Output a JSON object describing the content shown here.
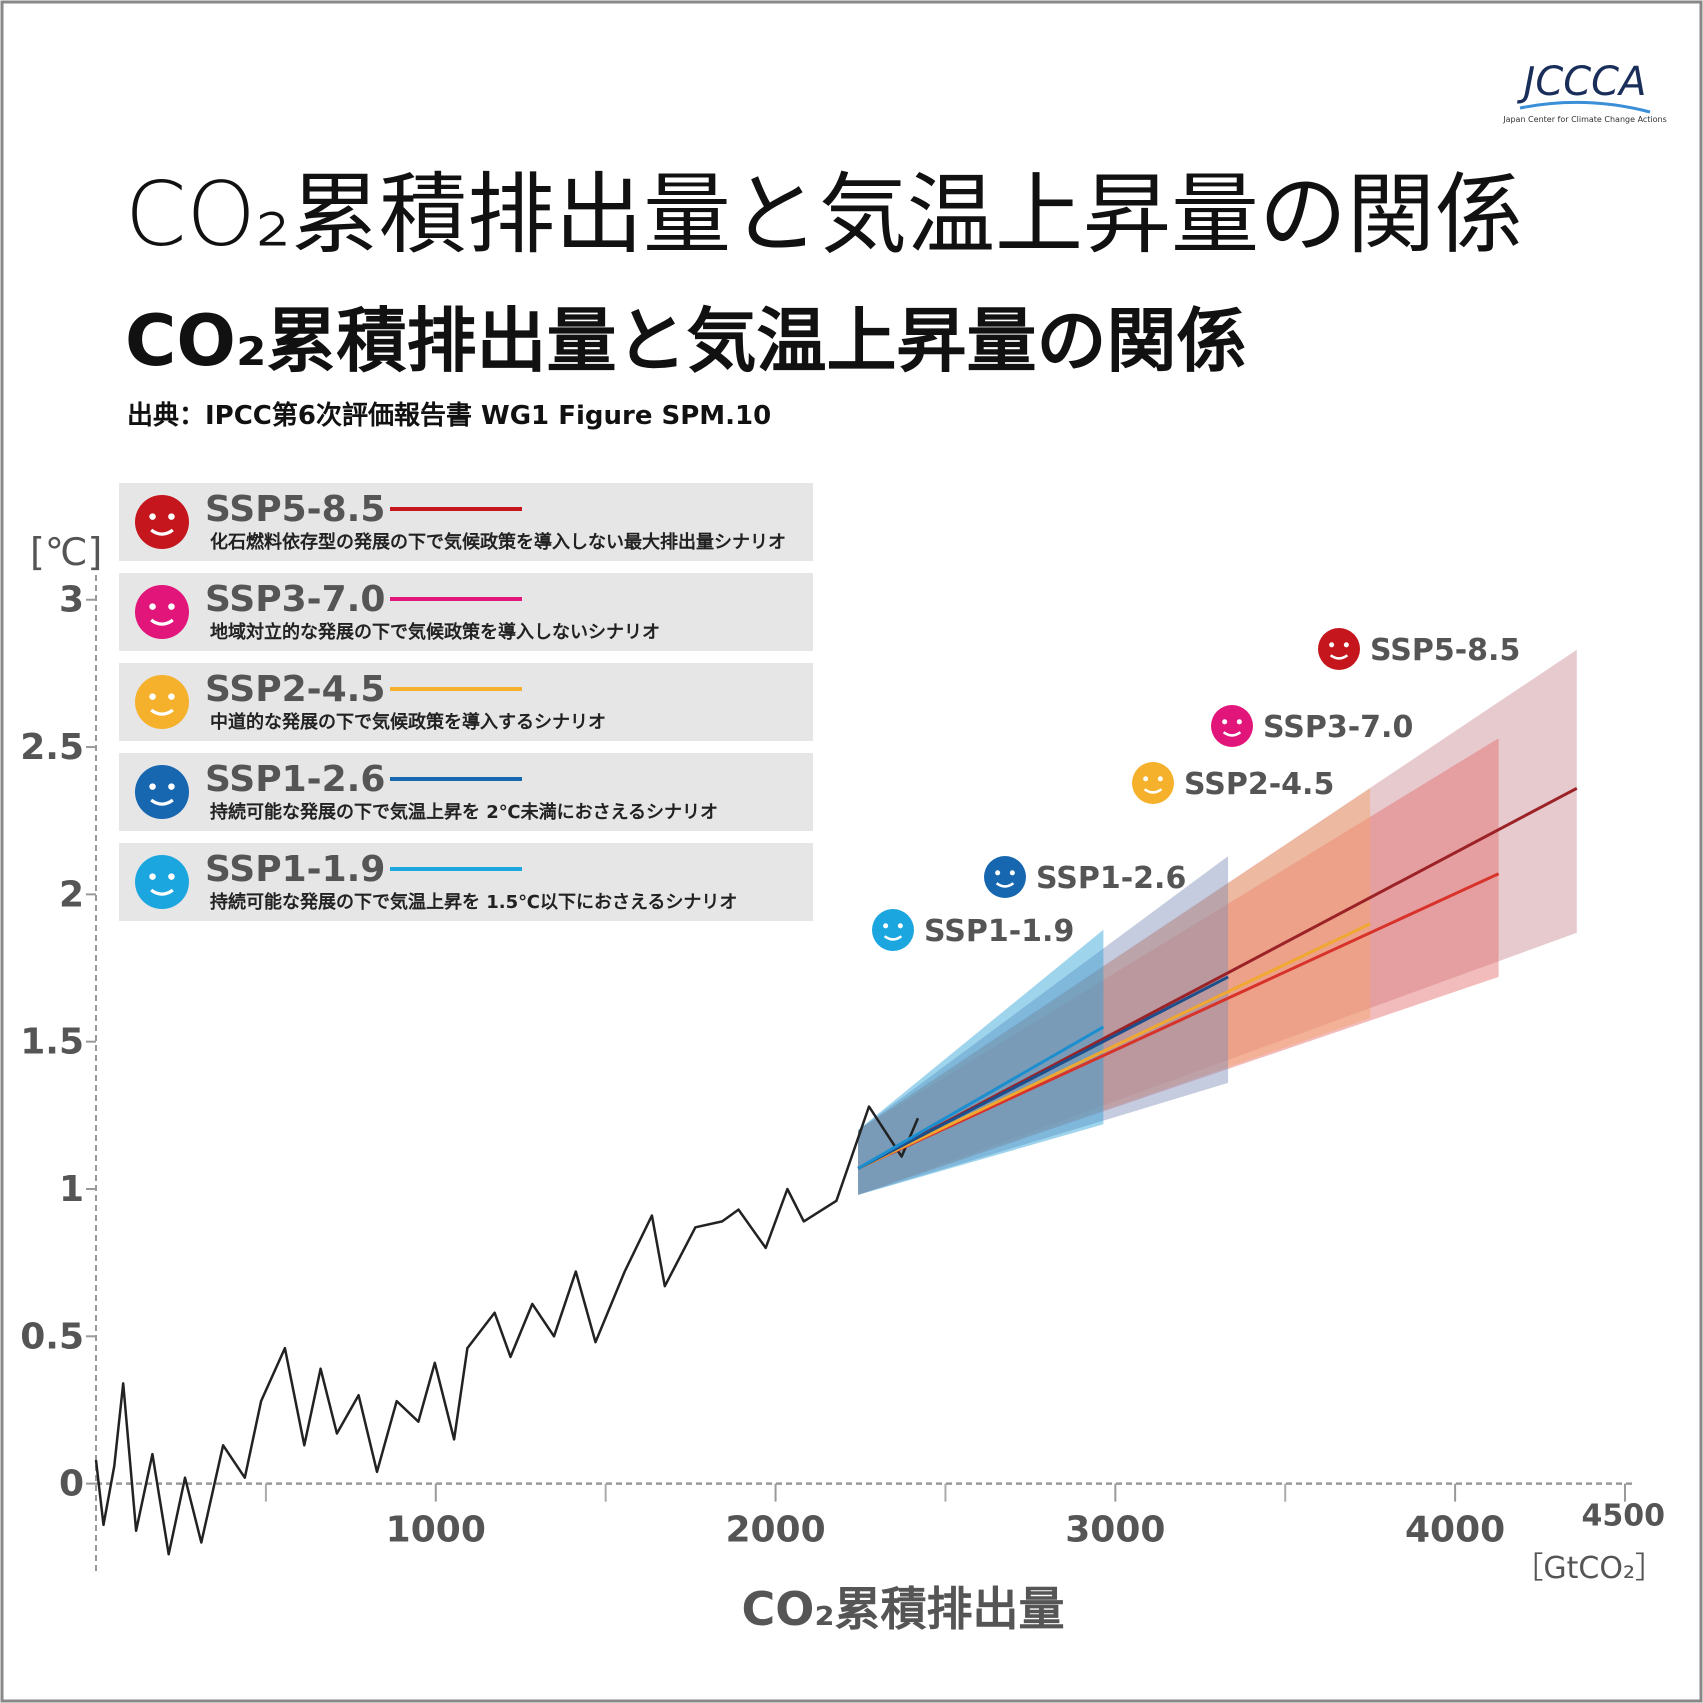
{
  "logo": {
    "name": "JCCCA",
    "tagline": "Japan Center for Climate Change Actions"
  },
  "chart_data": {
    "type": "line",
    "title": "CO₂累積排出量と気温上昇量の関係",
    "title_bold": "CO₂累積排出量と気温上昇量の関係",
    "source": "出典：IPCC第6次評価報告書 WG1 Figure SPM.10",
    "y_label": "[℃]",
    "x_label": "CO₂累積排出量",
    "x_unit": "［GtCO₂］",
    "xlim": [
      0,
      4500
    ],
    "ylim": [
      -0.3,
      3.05
    ],
    "xticks": [
      1000,
      2000,
      3000,
      4000,
      4500
    ],
    "xminor_ticks": [
      500,
      1500,
      2500,
      3500
    ],
    "yticks": [
      0,
      0.5,
      1,
      1.5,
      2,
      2.5,
      3
    ],
    "historical": {
      "color": "#222222",
      "x": [
        0,
        22,
        54,
        80,
        118,
        166,
        214,
        262,
        310,
        374,
        438,
        486,
        556,
        613,
        661,
        709,
        773,
        827,
        885,
        949,
        997,
        1054,
        1093,
        1173,
        1220,
        1284,
        1348,
        1412,
        1470,
        1556,
        1636,
        1674,
        1764,
        1843,
        1891,
        1971,
        2035,
        2083,
        2179,
        2275,
        2371,
        2419
      ],
      "values": [
        0.08,
        -0.14,
        0.06,
        0.34,
        -0.16,
        0.1,
        -0.24,
        0.02,
        -0.2,
        0.13,
        0.02,
        0.28,
        0.46,
        0.13,
        0.39,
        0.17,
        0.3,
        0.04,
        0.28,
        0.21,
        0.41,
        0.15,
        0.46,
        0.58,
        0.43,
        0.61,
        0.5,
        0.72,
        0.48,
        0.72,
        0.91,
        0.67,
        0.87,
        0.89,
        0.93,
        0.8,
        1.0,
        0.89,
        0.96,
        1.28,
        1.11,
        1.24
      ]
    },
    "series": [
      {
        "name": "SSP5-8.5",
        "description": "化石燃料依存型の発展の下で気候政策を導入しない最大排出量シナリオ",
        "color": "#c4161c",
        "line_color": "#9b2226",
        "band_color": "#c98a92",
        "x": [
          2243,
          4358
        ],
        "values": [
          1.07,
          2.36
        ],
        "lower": [
          0.98,
          1.87
        ],
        "upper": [
          1.2,
          2.83
        ]
      },
      {
        "name": "SSP3-7.0",
        "description": "地域対立的な発展の下で気候政策を導入しないシナリオ",
        "color": "#e2157b",
        "line_color": "#d7332b",
        "band_color": "#e46a6a",
        "x": [
          2243,
          4128
        ],
        "values": [
          1.07,
          2.07
        ],
        "lower": [
          0.98,
          1.72
        ],
        "upper": [
          1.2,
          2.53
        ]
      },
      {
        "name": "SSP2-4.5",
        "description": "中道的な発展の下で気候政策を導入するシナリオ",
        "color": "#f5b12b",
        "line_color": "#f0a830",
        "band_color": "#f3a56a",
        "x": [
          2243,
          3750
        ],
        "values": [
          1.07,
          1.9
        ],
        "lower": [
          0.98,
          1.58
        ],
        "upper": [
          1.2,
          2.36
        ]
      },
      {
        "name": "SSP1-2.6",
        "description": "持続可能な発展の下で気温上昇を 2℃未満におさえるシナリオ",
        "color": "#1766b0",
        "line_color": "#1d4f8c",
        "band_color": "#7f8fb8",
        "x": [
          2243,
          3332
        ],
        "values": [
          1.07,
          1.72
        ],
        "lower": [
          0.98,
          1.36
        ],
        "upper": [
          1.2,
          2.13
        ]
      },
      {
        "name": "SSP1-1.9",
        "description": "持続可能な発展の下で気温上昇を 1.5℃以下におさえるシナリオ",
        "color": "#1ba6e0",
        "line_color": "#1b8ed0",
        "band_color": "#2aa0d8",
        "x": [
          2243,
          2965
        ],
        "values": [
          1.07,
          1.55
        ],
        "lower": [
          0.98,
          1.22
        ],
        "upper": [
          1.2,
          1.88
        ]
      }
    ]
  }
}
